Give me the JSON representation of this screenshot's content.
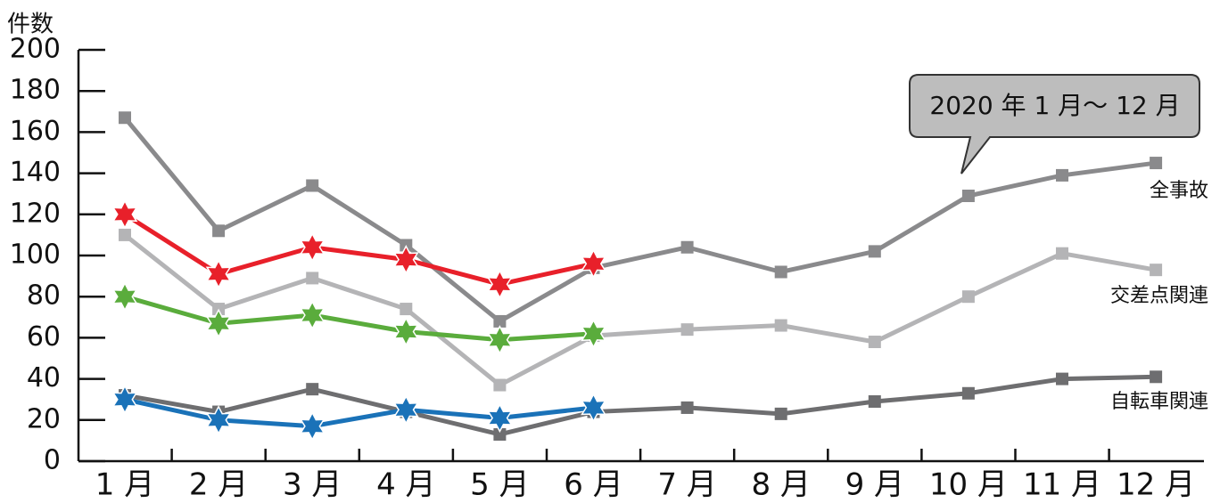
{
  "chart_data": {
    "type": "line",
    "y_label": "件数",
    "annotation": "2020 年 1 月〜 12 月",
    "categories": [
      "1 月",
      "2 月",
      "3 月",
      "4 月",
      "5 月",
      "6 月",
      "7 月",
      "8 月",
      "9 月",
      "10 月",
      "11 月",
      "12 月"
    ],
    "ylim": [
      0,
      200
    ],
    "yticks": [
      0,
      20,
      40,
      60,
      80,
      100,
      120,
      140,
      160,
      180,
      200
    ],
    "series": [
      {
        "name": "全事故",
        "color": "#8a8a8c",
        "marker": "square",
        "values": [
          167,
          112,
          134,
          105,
          68,
          94,
          104,
          92,
          102,
          129,
          139,
          145
        ]
      },
      {
        "name": "交差点関連",
        "color": "#b4b4b6",
        "marker": "square",
        "values": [
          110,
          74,
          89,
          74,
          37,
          61,
          64,
          66,
          58,
          80,
          101,
          93
        ]
      },
      {
        "name": "自転車関連",
        "color": "#6e6e70",
        "marker": "square",
        "values": [
          32,
          24,
          35,
          24,
          13,
          24,
          26,
          23,
          29,
          33,
          40,
          41
        ]
      },
      {
        "color": "#e8202a",
        "marker": "star",
        "values": [
          120,
          91,
          104,
          98,
          86,
          96,
          null,
          null,
          null,
          null,
          null,
          null
        ]
      },
      {
        "color": "#5aac3c",
        "marker": "star",
        "values": [
          80,
          67,
          71,
          63,
          59,
          62,
          null,
          null,
          null,
          null,
          null,
          null
        ]
      },
      {
        "color": "#1a72b8",
        "marker": "star",
        "values": [
          30,
          20,
          17,
          25,
          21,
          26,
          null,
          null,
          null,
          null,
          null,
          null
        ]
      }
    ]
  }
}
